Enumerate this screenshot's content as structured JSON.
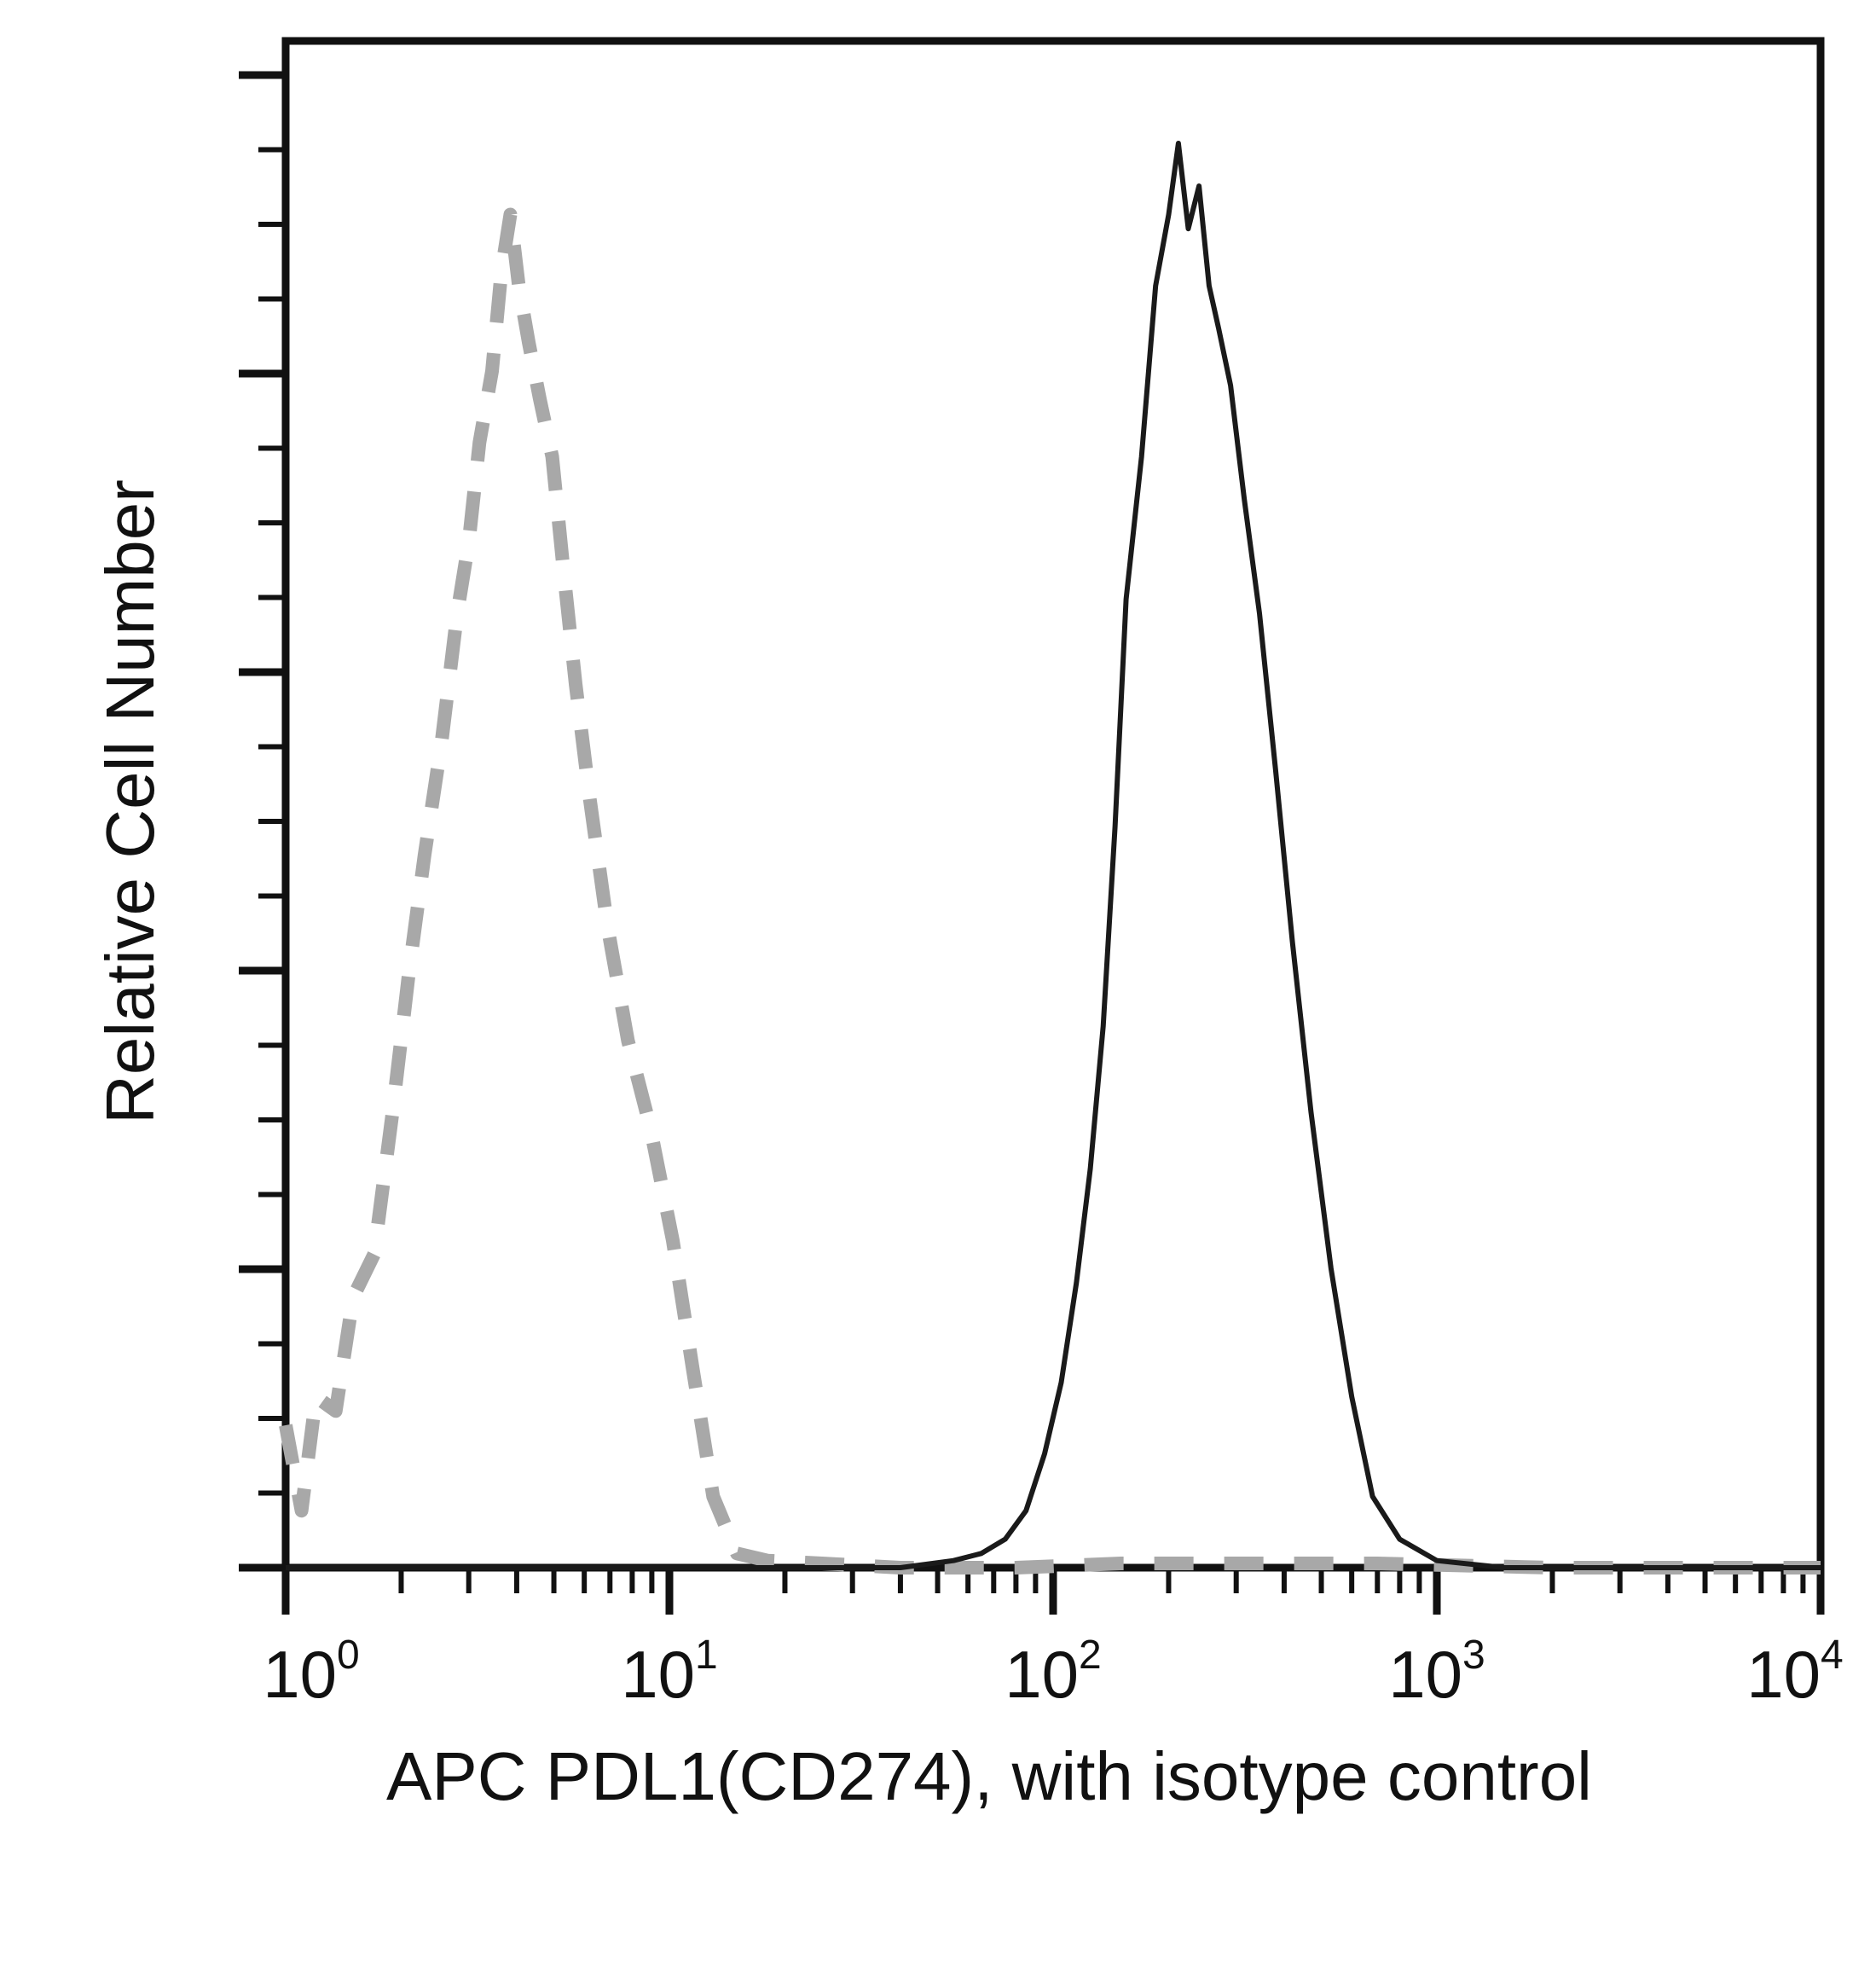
{
  "chart_data": {
    "type": "line",
    "title": "",
    "xlabel": "APC PDL1(CD274), with isotype control",
    "ylabel": "Relative Cell Number",
    "x_scale": "log",
    "xlim": [
      1,
      10000
    ],
    "ylim": [
      0,
      100
    ],
    "x_ticks": [
      {
        "value": 1,
        "base": "10",
        "exp": "0"
      },
      {
        "value": 10,
        "base": "10",
        "exp": "1"
      },
      {
        "value": 100,
        "base": "10",
        "exp": "2"
      },
      {
        "value": 1000,
        "base": "10",
        "exp": "3"
      },
      {
        "value": 10000,
        "base": "10",
        "exp": "4"
      }
    ],
    "y_tick_labels": false,
    "grid": false,
    "legend": "none",
    "series": [
      {
        "style": "dashed",
        "color": "#a8a8a8",
        "x": [
          1.0,
          1.1,
          1.2,
          1.35,
          1.5,
          1.7,
          1.9,
          2.1,
          2.3,
          2.55,
          2.8,
          3.0,
          3.2,
          3.45,
          3.65,
          3.85,
          4.05,
          4.3,
          4.6,
          4.95,
          5.3,
          5.7,
          6.2,
          6.9,
          7.8,
          8.9,
          10.2,
          11.5,
          13.0,
          15.0,
          18.0,
          25.0,
          40.0,
          80.0,
          150.0,
          300.0,
          700.0,
          2000.0,
          10000.0
        ],
        "y": [
          10,
          4,
          12,
          11,
          19,
          22,
          32,
          42,
          50,
          58,
          67,
          72,
          79,
          84,
          91,
          95,
          90,
          86,
          82,
          78,
          70,
          62,
          54,
          45,
          37,
          31,
          23,
          14,
          5,
          1,
          0.5,
          0.3,
          0,
          0,
          0.3,
          0.3,
          0.3,
          0,
          0
        ]
      },
      {
        "style": "solid",
        "color": "#1a1a1a",
        "x": [
          1.0,
          20.0,
          40.0,
          55.0,
          65.0,
          75.0,
          85.0,
          95.0,
          105.0,
          115.0,
          125.0,
          135.0,
          145.0,
          155.0,
          170.0,
          185.0,
          200.0,
          212.0,
          225.0,
          240.0,
          255.0,
          270.0,
          290.0,
          315.0,
          345.0,
          380.0,
          420.0,
          470.0,
          530.0,
          600.0,
          680.0,
          800.0,
          1000.0,
          1500.0,
          10000.0
        ],
        "y": [
          0,
          0,
          0,
          0.5,
          1,
          2,
          4,
          8,
          13,
          20,
          28,
          38,
          52,
          68,
          78,
          90,
          95,
          100,
          94,
          97,
          90,
          87,
          83,
          75,
          67,
          56,
          44,
          32,
          21,
          12,
          5,
          2,
          0.5,
          0,
          0
        ]
      }
    ]
  }
}
